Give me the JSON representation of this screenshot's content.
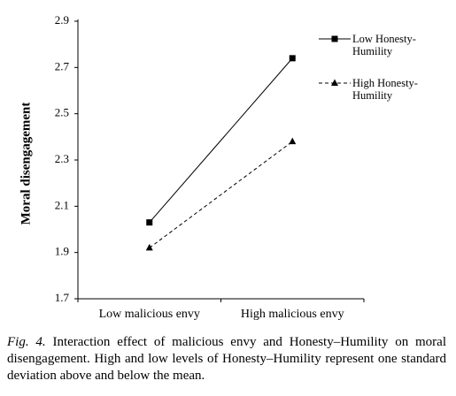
{
  "chart_data": {
    "type": "line",
    "y_label": "Moral disengagement",
    "categories": [
      "Low malicious envy",
      "High malicious envy"
    ],
    "series": [
      {
        "name": "Low Honesty-Humility",
        "color": "#000000",
        "line_style": "solid",
        "marker": "square",
        "values": [
          2.03,
          2.74
        ]
      },
      {
        "name": "High Honesty-Humility",
        "color": "#000000",
        "line_style": "dashed",
        "marker": "triangle",
        "values": [
          1.92,
          2.38
        ]
      }
    ],
    "ylim": [
      1.7,
      2.9
    ],
    "yticks": [
      1.7,
      1.9,
      2.1,
      2.3,
      2.5,
      2.7,
      2.9
    ],
    "legend": "upper-right",
    "grid": false
  },
  "caption": {
    "label": "Fig. 4.",
    "text": "Interaction effect of malicious envy and Honesty–Humility on moral disengagement. High and low levels of Honesty–Humility represent one standard deviation above and below the mean."
  }
}
